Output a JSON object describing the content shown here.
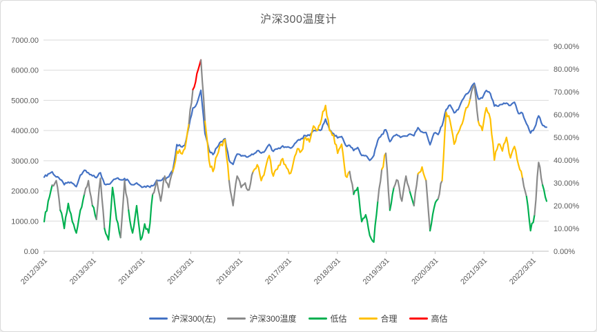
{
  "chart_data": {
    "type": "line",
    "title": "沪深300温度计",
    "x_start": "2012/3",
    "x_interval": "month",
    "x_tick_labels": [
      "2012/3/31",
      "2013/3/31",
      "2014/3/31",
      "2015/3/31",
      "2016/3/31",
      "2017/3/31",
      "2018/3/31",
      "2019/3/31",
      "2020/3/31",
      "2021/3/31",
      "2022/3/31"
    ],
    "axes": {
      "left": {
        "min": 0,
        "max": 7000,
        "tick_step": 1000,
        "tick_labels": [
          "0.00",
          "1000.00",
          "2000.00",
          "3000.00",
          "4000.00",
          "5000.00",
          "6000.00",
          "7000.00"
        ]
      },
      "right": {
        "min": 0,
        "max": 90,
        "tick_step": 10,
        "unit": "%",
        "tick_labels": [
          "0.00%",
          "10.00%",
          "20.00%",
          "30.00%",
          "40.00%",
          "50.00%",
          "60.00%",
          "70.00%",
          "80.00%",
          "90.00%"
        ]
      }
    },
    "thresholds": {
      "undervalued_max_pct": 30,
      "overvalued_min_pct": 70
    },
    "series": [
      {
        "name": "沪深300(左)",
        "axis": "left",
        "color": "#4472C4",
        "values": [
          2454,
          2565,
          2632,
          2461,
          2373,
          2205,
          2293,
          2254,
          2139,
          2523,
          2685,
          2601,
          2499,
          2436,
          2600,
          2225,
          2221,
          2331,
          2413,
          2368,
          2410,
          2331,
          2204,
          2264,
          2160,
          2152,
          2151,
          2166,
          2355,
          2343,
          2420,
          2463,
          2683,
          3534,
          3470,
          3511,
          4124,
          4748,
          4900,
          5335,
          3900,
          3366,
          3203,
          3439,
          3634,
          3731,
          3016,
          2878,
          3221,
          3157,
          3168,
          3154,
          3202,
          3330,
          3253,
          3337,
          3538,
          3310,
          3388,
          3452,
          3456,
          3440,
          3492,
          3666,
          3737,
          3831,
          3837,
          3998,
          4006,
          4031,
          4380,
          4023,
          3898,
          3757,
          3802,
          3511,
          3512,
          3335,
          3439,
          3172,
          3173,
          3011,
          3170,
          3678,
          3872,
          4026,
          3630,
          3825,
          3835,
          3800,
          3815,
          3887,
          3828,
          4097,
          3955,
          3940,
          3530,
          3912,
          3867,
          4164,
          4696,
          4844,
          4587,
          4695,
          5005,
          5211,
          5352,
          5570,
          5048,
          5078,
          5331,
          5224,
          4811,
          4806,
          4866,
          4909,
          4832,
          4940,
          4564,
          4574,
          4223,
          3916,
          4091,
          4485,
          4170,
          4110
        ]
      },
      {
        "name": "沪深300温度",
        "axis": "right",
        "unit": "%",
        "color": "#8A8A8A",
        "bands": [
          {
            "name": "低估",
            "range": "< 30%",
            "color": "#00B050"
          },
          {
            "name": "合理",
            "range": "30%-70%",
            "color": "#FFC000"
          },
          {
            "name": "高估",
            "range": ">= 70%",
            "color": "#FF0000"
          }
        ],
        "values": [
          13,
          22,
          29,
          31,
          18,
          10,
          21,
          13,
          8,
          18,
          25,
          31,
          20,
          14,
          32,
          10,
          5,
          28,
          14,
          6,
          31,
          18,
          8,
          20,
          5,
          12,
          8,
          25,
          31,
          22,
          33,
          28,
          35,
          44,
          43,
          45,
          56,
          71,
          78,
          84,
          57,
          40,
          35,
          42,
          47,
          49,
          31,
          20,
          33,
          28,
          30,
          27,
          35,
          38,
          31,
          36,
          42,
          33,
          36,
          40,
          38,
          34,
          39,
          45,
          44,
          50,
          48,
          55,
          53,
          58,
          64,
          53,
          51,
          43,
          47,
          33,
          35,
          25,
          28,
          13,
          16,
          7,
          4,
          22,
          36,
          43,
          18,
          28,
          31,
          22,
          33,
          26,
          20,
          34,
          37,
          31,
          9,
          19,
          23,
          31,
          61,
          57,
          47,
          52,
          56,
          63,
          67,
          73,
          57,
          53,
          63,
          58,
          40,
          47,
          44,
          50,
          41,
          46,
          38,
          32,
          24,
          9,
          16,
          39,
          29,
          22
        ]
      }
    ]
  },
  "legend": {
    "items": [
      {
        "label": "沪深300(左)",
        "color": "#4472C4"
      },
      {
        "label": "沪深300温度",
        "color": "#8A8A8A"
      },
      {
        "label": "低估",
        "color": "#00B050"
      },
      {
        "label": "合理",
        "color": "#FFC000"
      },
      {
        "label": "高估",
        "color": "#FF0000"
      }
    ]
  },
  "colors": {
    "background": "#FFFFFF",
    "frame_border": "#D9D9D9",
    "gridline": "#D9D9D9",
    "axis_line": "#BFBFBF",
    "text": "#595959"
  }
}
